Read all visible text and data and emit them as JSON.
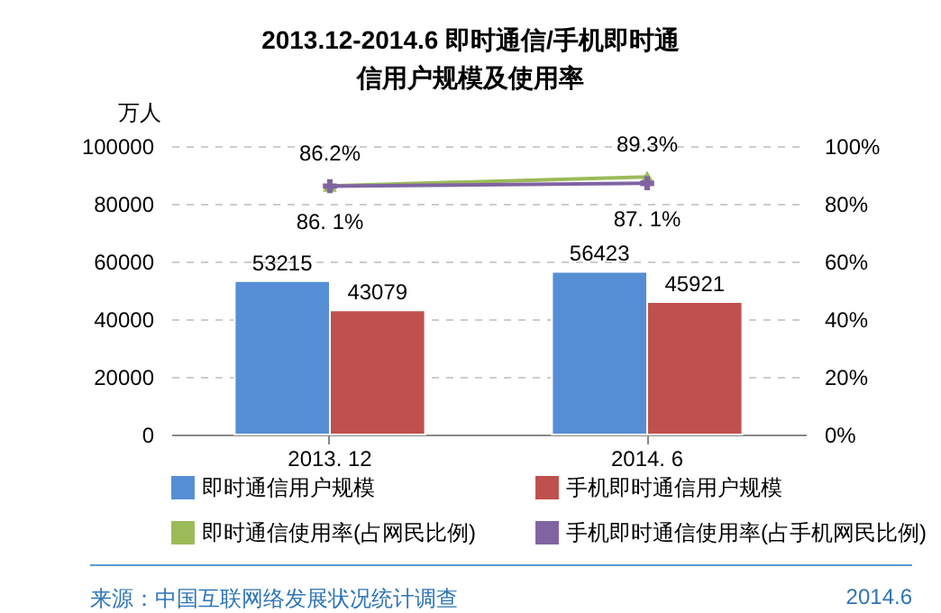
{
  "chart_data": {
    "type": "bar",
    "title": "2013.12-2014.6 即时通信/手机即时通信用户规模及使用率",
    "ylabel": "万人",
    "categories": [
      "2013. 12",
      "2014. 6"
    ],
    "series": [
      {
        "name": "即时通信用户规模",
        "color": "#558ed5",
        "values": [
          53215,
          56423
        ],
        "value_labels": [
          "53215",
          "56423"
        ]
      },
      {
        "name": "手机即时通信用户规模",
        "color": "#c0504d",
        "values": [
          43079,
          45921
        ],
        "value_labels": [
          "43079",
          "45921"
        ]
      },
      {
        "name": "即时通信使用率(占网民比例)",
        "type": "line",
        "axis": "y2",
        "marker": "triangle",
        "color": "#9bbb59",
        "values": [
          86.2,
          89.3
        ],
        "value_labels": [
          "86.2%",
          "89.3%"
        ]
      },
      {
        "name": "手机即时通信使用率(占手机网民比例)",
        "type": "line",
        "axis": "y2",
        "marker": "cross",
        "color": "#8064a2",
        "values": [
          86.1,
          87.1
        ],
        "value_labels": [
          "86. 1%",
          "87. 1%"
        ]
      }
    ],
    "ylim": [
      0,
      100000
    ],
    "yticks": [
      0,
      20000,
      40000,
      60000,
      80000,
      100000
    ],
    "y2lim": [
      0,
      100
    ],
    "y2ticks": [
      {
        "value": 0,
        "label": "0%"
      },
      {
        "value": 20,
        "label": "20%"
      },
      {
        "value": 40,
        "label": "40%"
      },
      {
        "value": 60,
        "label": "60%"
      },
      {
        "value": 80,
        "label": "80%"
      },
      {
        "value": 100,
        "label": "100%"
      }
    ],
    "grid": "y",
    "legend": "bottom",
    "annotations": [
      "来源：中国互联网络发展状况统计调查",
      "2014.6"
    ]
  }
}
